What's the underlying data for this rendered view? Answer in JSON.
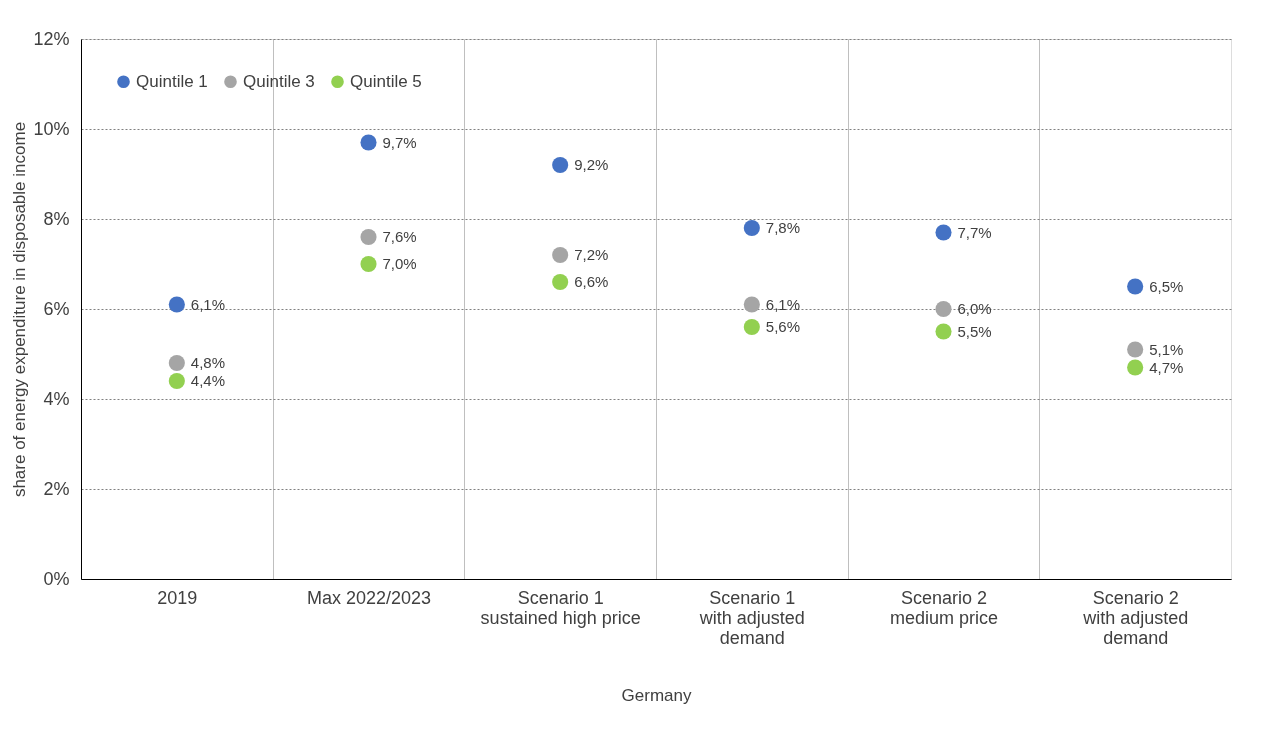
{
  "chart_data": {
    "type": "scatter",
    "ylabel": "share of energy expenditure in disposable income",
    "xlabel": "Germany",
    "categories": [
      "2019",
      "Max 2022/2023",
      "Scenario 1\nsustained high price",
      "Scenario 1\nwith adjusted\ndemand",
      "Scenario 2\nmedium price",
      "Scenario 2\nwith adjusted\ndemand"
    ],
    "series": [
      {
        "name": "Quintile 1",
        "color": "#4472c4",
        "values": [
          6.1,
          9.7,
          9.2,
          7.8,
          7.7,
          6.5
        ],
        "value_labels": [
          "6,1%",
          "9,7%",
          "9,2%",
          "7,8%",
          "7,7%",
          "6,5%"
        ]
      },
      {
        "name": "Quintile 3",
        "color": "#a5a5a5",
        "values": [
          4.8,
          7.6,
          7.2,
          6.1,
          6.0,
          5.1
        ],
        "value_labels": [
          "4,8%",
          "7,6%",
          "7,2%",
          "6,1%",
          "6,0%",
          "5,1%"
        ]
      },
      {
        "name": "Quintile 5",
        "color": "#92d050",
        "values": [
          4.4,
          7.0,
          6.6,
          5.6,
          5.5,
          4.7
        ],
        "value_labels": [
          "4,4%",
          "7,0%",
          "6,6%",
          "5,6%",
          "5,5%",
          "4,7%"
        ]
      }
    ],
    "ylim": [
      0,
      12
    ],
    "yticks": [
      {
        "value": 0,
        "label": "0%"
      },
      {
        "value": 2,
        "label": "2%"
      },
      {
        "value": 4,
        "label": "4%"
      },
      {
        "value": 6,
        "label": "6%"
      },
      {
        "value": 8,
        "label": "8%"
      },
      {
        "value": 10,
        "label": "10%"
      },
      {
        "value": 12,
        "label": "12%"
      }
    ],
    "grid": true,
    "legend": "top left",
    "marker": "circle"
  }
}
